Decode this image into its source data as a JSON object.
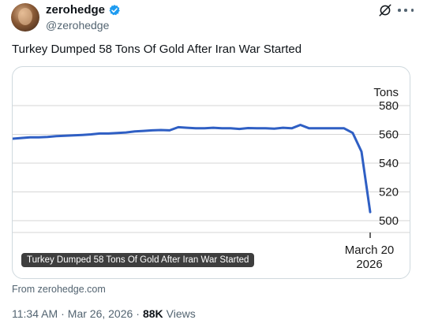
{
  "post": {
    "author_name": "zerohedge",
    "handle": "@zerohedge",
    "text": "Turkey Dumped 58 Tons Of Gold After Iran War Started",
    "media_caption": "Turkey Dumped 58 Tons Of Gold After Iran War Started",
    "source": "From zerohedge.com",
    "time": "11:34 AM",
    "separator": "·",
    "date": "Mar 26, 2026",
    "views_count": "88K",
    "views_label": "Views"
  },
  "icons": {
    "verified": "verified-badge-icon",
    "grok": "grok-icon",
    "more": "more-icon"
  },
  "colors": {
    "accent": "#1d9bf0",
    "line": "#2f5fc4",
    "muted_text": "#536471",
    "border": "#cfd9de"
  },
  "chart_data": {
    "type": "line",
    "unit_label": "Tons",
    "yticks": [
      "580",
      "560",
      "540",
      "520",
      "500"
    ],
    "ylim": [
      495,
      585
    ],
    "grid": true,
    "x_label_line1": "March 20",
    "x_label_line2": "2026",
    "series": [
      {
        "values": [
          557,
          557.5,
          558,
          558,
          558.2,
          558.8,
          559,
          559.3,
          559.6,
          560,
          560.6,
          560.6,
          561,
          561.3,
          562,
          562.4,
          562.8,
          563,
          562.8,
          565,
          564.6,
          564.2,
          564.2,
          564.6,
          564.2,
          564.2,
          563.8,
          564.4,
          564.2,
          564.2,
          564,
          564.6,
          564.2,
          566.6,
          564.2,
          564.2,
          564.2,
          564.2,
          564.2,
          561,
          548,
          506
        ]
      }
    ]
  }
}
